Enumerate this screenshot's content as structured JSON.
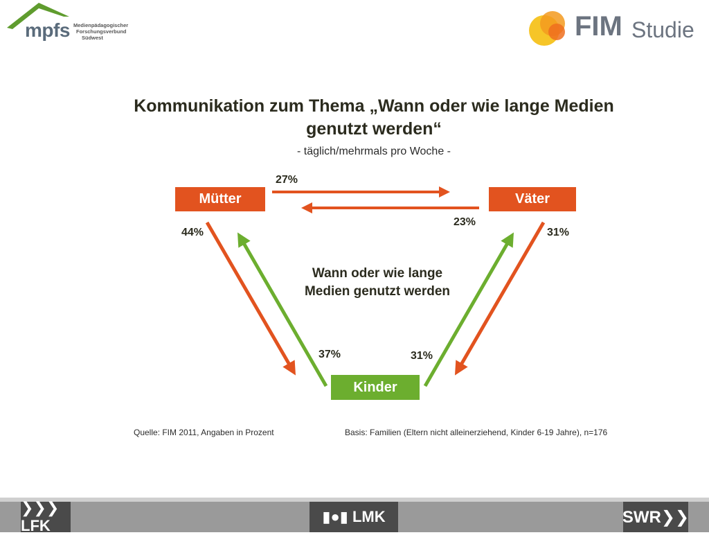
{
  "header": {
    "left_logo": {
      "icon": "roof-arc-icon",
      "wordmark": "mpfs",
      "subtext_lines": [
        "Medienpädagogischer",
        "Forschungsverbund",
        "Südwest"
      ]
    },
    "right_logo": {
      "icon": "overlapping-circles-icon",
      "wordmark_bold": "FIM",
      "wordmark_light": "Studie",
      "colors": [
        "#f6c21c",
        "#f39a1f",
        "#ee6e1e"
      ]
    }
  },
  "title": "Kommunikation zum Thema „Wann oder wie lange Medien genutzt werden“",
  "subtitle": "- täglich/mehrmals pro Woche -",
  "nodes": {
    "mothers": {
      "label": "Mütter",
      "color": "#e2531f"
    },
    "fathers": {
      "label": "Väter",
      "color": "#e2531f"
    },
    "children": {
      "label": "Kinder",
      "color": "#6cae2f"
    }
  },
  "center_label_lines": [
    "Wann oder wie lange",
    "Medien genutzt werden"
  ],
  "flows": [
    {
      "from": "mothers",
      "to": "fathers",
      "value": "27%",
      "color": "#e2531f"
    },
    {
      "from": "fathers",
      "to": "mothers",
      "value": "23%",
      "color": "#e2531f"
    },
    {
      "from": "mothers",
      "to": "children",
      "value": "44%",
      "color": "#e2531f"
    },
    {
      "from": "children",
      "to": "mothers",
      "value": "37%",
      "color": "#6cae2f"
    },
    {
      "from": "fathers",
      "to": "children",
      "value": "31%",
      "color": "#e2531f"
    },
    {
      "from": "children",
      "to": "fathers",
      "value": "31%",
      "color": "#6cae2f"
    }
  ],
  "notes": {
    "source": "Quelle: FIM 2011,  Angaben in Prozent",
    "basis": "Basis: Familien (Eltern nicht alleinerziehend, Kinder 6-19 Jahre), n=176"
  },
  "footer": {
    "logos": [
      {
        "text": "❯❯❯LFK",
        "icon": "lfk-logo-icon"
      },
      {
        "text": "▮●▮ LMK",
        "icon": "lmk-logo-icon"
      },
      {
        "text": "SWR❯❯",
        "icon": "swr-logo-icon"
      }
    ]
  }
}
